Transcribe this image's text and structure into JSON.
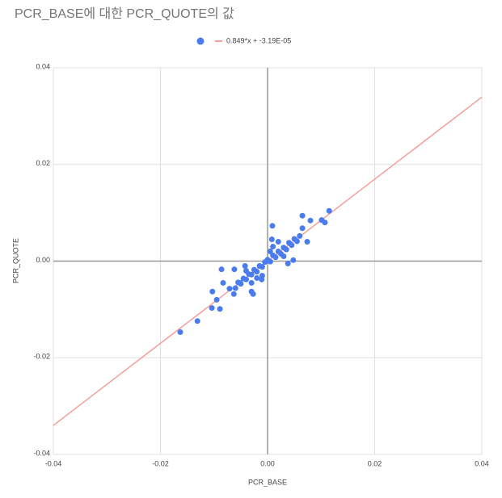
{
  "chart_data": {
    "type": "scatter",
    "title": "PCR_BASE에 대한 PCR_QUOTE의 값",
    "x_label": "PCR_BASE",
    "y_label": "PCR_QUOTE",
    "xlim": [
      -0.04,
      0.04
    ],
    "ylim": [
      -0.04,
      0.04
    ],
    "xticks": [
      -0.04,
      -0.02,
      {
        "value": 0,
        "label": "0.00"
      },
      0.02,
      0.04
    ],
    "yticks": [
      -0.04,
      -0.02,
      {
        "value": 0,
        "label": "0.00"
      },
      0.02,
      0.04
    ],
    "grid": true,
    "series": [
      {
        "color": "#4a7cf0",
        "x": [
          -0.0163,
          -0.0131,
          -0.0104,
          -0.0089,
          -0.0095,
          -0.0103,
          -0.0086,
          -0.0083,
          -0.0062,
          -0.0042,
          -0.0027,
          -0.003,
          0.0009,
          0.0008,
          0.0065,
          0.008,
          0.0101,
          0.0107,
          0.0115,
          0.0074,
          0.0048,
          0.0038,
          -0.0011,
          -0.0063,
          -0.0071,
          -0.0051,
          -0.006,
          -0.0055,
          -0.005,
          -0.0045,
          -0.004,
          -0.0035,
          -0.003,
          -0.0025,
          -0.002,
          -0.0015,
          -0.001,
          -0.0005,
          0,
          0.0005,
          0.001,
          0.0015,
          0.002,
          0.0025,
          0.003,
          0.0035,
          0.004,
          0.0045,
          0.005,
          0.0055,
          0.006,
          0.0065,
          -0.003,
          -0.002,
          0.001,
          0.002,
          0.003,
          -0.004,
          0.0005,
          -0.001
        ],
        "y": [
          -0.0147,
          -0.0124,
          -0.0097,
          -0.0099,
          -0.008,
          -0.0063,
          -0.0017,
          -0.0045,
          -0.0017,
          -0.001,
          -0.0068,
          -0.0063,
          0.0073,
          0.0045,
          0.0094,
          0.0084,
          0.0085,
          0.008,
          0.0104,
          0.004,
          0.0002,
          -0.0005,
          -0.0038,
          -0.0068,
          -0.0057,
          -0.0045,
          -0.0056,
          -0.0044,
          -0.0047,
          -0.0036,
          -0.0038,
          -0.0027,
          -0.0028,
          -0.0018,
          -0.0022,
          -0.001,
          -0.0012,
          -0.0002,
          0.0003,
          -0.0001,
          0.0012,
          0.0008,
          0.002,
          0.0015,
          0.0028,
          0.0024,
          0.0038,
          0.0033,
          0.0046,
          0.0041,
          0.0052,
          0.0068,
          -0.0045,
          -0.0035,
          0.003,
          0.004,
          0.001,
          -0.002,
          0.002,
          -0.003
        ]
      }
    ],
    "trendline": {
      "label": "0.849*x + -3.19E-05",
      "slope": 0.849,
      "intercept": -3.19e-05,
      "color": "#f4a09a"
    }
  }
}
